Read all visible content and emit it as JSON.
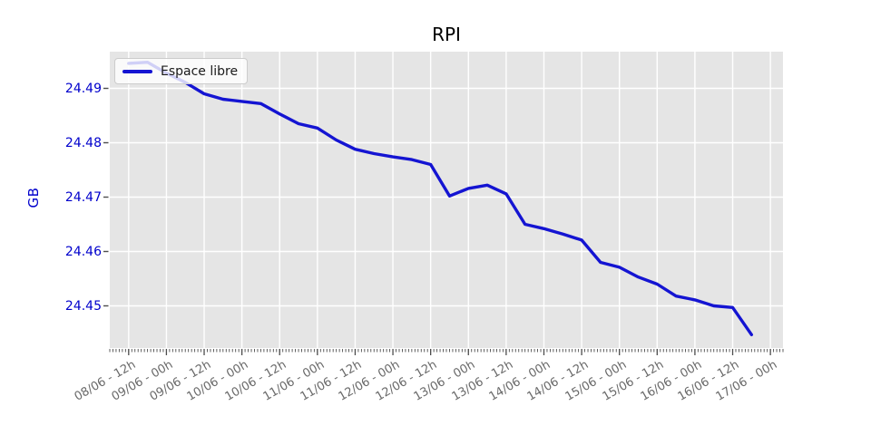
{
  "title": "RPI",
  "legend": {
    "label": "Espace libre"
  },
  "colors": {
    "line": "#1414d2",
    "axis_text_blue": "#0000cc",
    "x_tick_text": "#696969",
    "plot_bg": "#e5e5e5",
    "grid": "#ffffff",
    "tick_mark": "#4d4d4d",
    "title_text": "#000000"
  },
  "chart_data": {
    "type": "line",
    "title": "RPI",
    "xlabel": "",
    "ylabel": "GB",
    "grid": true,
    "legend_position": "upper left",
    "series": [
      {
        "name": "Espace libre",
        "points": [
          [
            "08/06 - 12h",
            24.4946
          ],
          [
            "08/06 - 18h",
            24.4948
          ],
          [
            "09/06 - 00h",
            24.4928
          ],
          [
            "09/06 - 06h",
            24.4911
          ],
          [
            "09/06 - 12h",
            24.489
          ],
          [
            "09/06 - 18h",
            24.488
          ],
          [
            "10/06 - 00h",
            24.4876
          ],
          [
            "10/06 - 06h",
            24.4872
          ],
          [
            "10/06 - 12h",
            24.4853
          ],
          [
            "10/06 - 18h",
            24.4835
          ],
          [
            "11/06 - 00h",
            24.4827
          ],
          [
            "11/06 - 06h",
            24.4805
          ],
          [
            "11/06 - 12h",
            24.4788
          ],
          [
            "11/06 - 18h",
            24.478
          ],
          [
            "12/06 - 00h",
            24.4774
          ],
          [
            "12/06 - 06h",
            24.4769
          ],
          [
            "12/06 - 12h",
            24.476
          ],
          [
            "12/06 - 18h",
            24.4702
          ],
          [
            "13/06 - 00h",
            24.4716
          ],
          [
            "13/06 - 06h",
            24.4722
          ],
          [
            "13/06 - 12h",
            24.4706
          ],
          [
            "13/06 - 18h",
            24.465
          ],
          [
            "14/06 - 00h",
            24.4642
          ],
          [
            "14/06 - 06h",
            24.4632
          ],
          [
            "14/06 - 12h",
            24.4621
          ],
          [
            "14/06 - 18h",
            24.458
          ],
          [
            "15/06 - 00h",
            24.4571
          ],
          [
            "15/06 - 06h",
            24.4553
          ],
          [
            "15/06 - 12h",
            24.454
          ],
          [
            "15/06 - 18h",
            24.4518
          ],
          [
            "16/06 - 00h",
            24.4511
          ],
          [
            "16/06 - 06h",
            24.45
          ],
          [
            "16/06 - 12h",
            24.4497
          ],
          [
            "16/06 - 18h",
            24.4447
          ]
        ]
      }
    ],
    "x_tick_labels": [
      "08/06 - 12h",
      "09/06 - 00h",
      "09/06 - 12h",
      "10/06 - 00h",
      "10/06 - 12h",
      "11/06 - 00h",
      "11/06 - 12h",
      "12/06 - 00h",
      "12/06 - 12h",
      "13/06 - 00h",
      "13/06 - 12h",
      "14/06 - 00h",
      "14/06 - 12h",
      "15/06 - 00h",
      "15/06 - 12h",
      "16/06 - 00h",
      "16/06 - 12h",
      "17/06 - 00h"
    ],
    "y_tick_labels": [
      "24.45",
      "24.46",
      "24.47",
      "24.48",
      "24.49"
    ],
    "y_tick_values": [
      24.45,
      24.46,
      24.47,
      24.48,
      24.49
    ],
    "ylim": [
      24.44225,
      24.49675
    ],
    "xlim_hours": [
      0,
      214
    ],
    "x_first_point_hour": 6,
    "x_point_step_hours": 6,
    "x_first_tick_hour": 6,
    "x_tick_step_hours": 12,
    "x_minor_tick_step_hours": 1
  }
}
